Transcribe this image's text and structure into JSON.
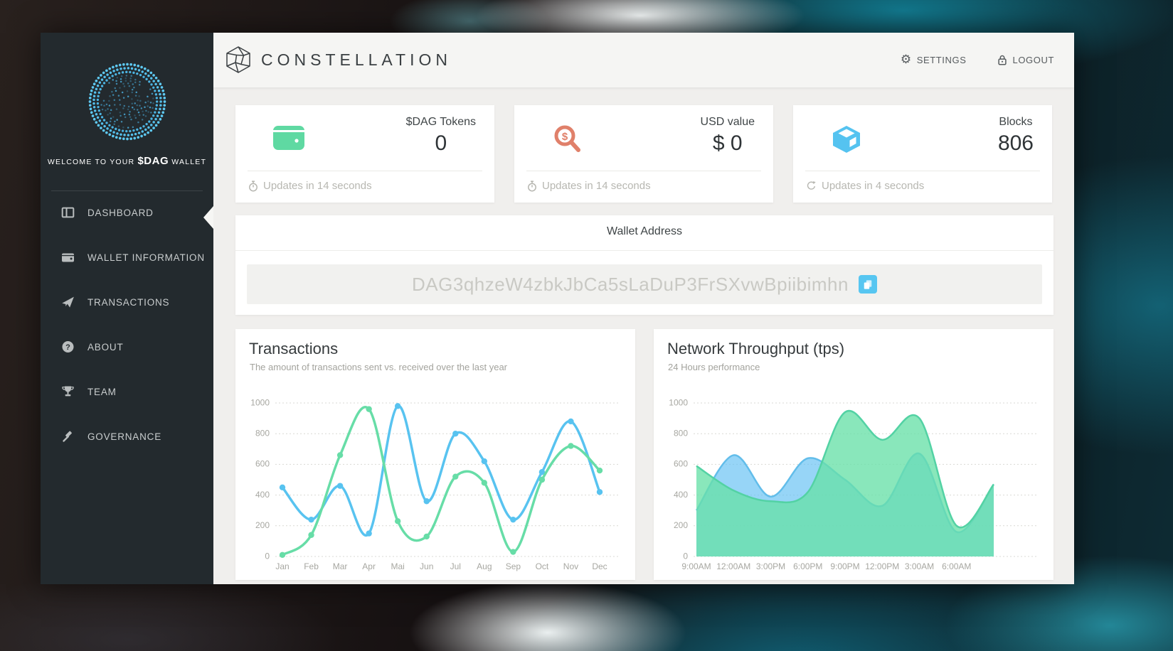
{
  "header": {
    "brand": "CONSTELLATION",
    "settings_label": "SETTINGS",
    "logout_label": "LOGOUT"
  },
  "sidebar": {
    "welcome_prefix": "WELCOME TO YOUR",
    "welcome_token": "$DAG",
    "welcome_suffix": "WALLET",
    "items": [
      {
        "label": "DASHBOARD",
        "icon": "dashboard-icon",
        "active": true
      },
      {
        "label": "WALLET INFORMATION",
        "icon": "wallet-icon",
        "active": false
      },
      {
        "label": "TRANSACTIONS",
        "icon": "send-icon",
        "active": false
      },
      {
        "label": "ABOUT",
        "icon": "question-icon",
        "active": false
      },
      {
        "label": "TEAM",
        "icon": "trophy-icon",
        "active": false
      },
      {
        "label": "GOVERNANCE",
        "icon": "gavel-icon",
        "active": false
      }
    ]
  },
  "stats": [
    {
      "title": "$DAG Tokens",
      "value": "0",
      "icon": "wallet-icon",
      "accent": "#5fd9a2",
      "footer_icon": "clock-icon",
      "footer": "Updates in 14 seconds"
    },
    {
      "title": "USD value",
      "value": "$ 0",
      "icon": "dollar-search-icon",
      "accent": "#e0806a",
      "footer_icon": "clock-icon",
      "footer": "Updates in 14 seconds"
    },
    {
      "title": "Blocks",
      "value": "806",
      "icon": "cube-icon",
      "accent": "#55c3f0",
      "footer_icon": "refresh-icon",
      "footer": "Updates in 4 seconds"
    }
  ],
  "wallet_address": {
    "title": "Wallet Address",
    "address": "DAG3qhzeW4zbkJbCa5sLaDuP3FrSXvwBpiibimhn",
    "copy_icon": "copy-icon",
    "copy_button_color": "#57c6f1"
  },
  "colors": {
    "accent_blue": "#58c3f0",
    "accent_green": "#67dda7",
    "accent_salmon": "#e0806a",
    "sidebar_bg": "#232a2e",
    "page_bg": "#f0efed",
    "grid": "#d9d9d4",
    "axis_text": "#a7a7a1"
  },
  "chart_data": [
    {
      "type": "line",
      "title": "Transactions",
      "subtitle": "The amount of transactions sent vs. received over the last year",
      "categories": [
        "Jan",
        "Feb",
        "Mar",
        "Apr",
        "Mai",
        "Jun",
        "Jul",
        "Aug",
        "Sep",
        "Oct",
        "Nov",
        "Dec"
      ],
      "series": [
        {
          "name": "sent",
          "color": "#58c3f0",
          "values": [
            450,
            240,
            460,
            150,
            980,
            360,
            800,
            620,
            240,
            550,
            880,
            420
          ]
        },
        {
          "name": "received",
          "color": "#67dda7",
          "values": [
            10,
            140,
            660,
            960,
            230,
            130,
            520,
            480,
            30,
            500,
            720,
            560
          ]
        }
      ],
      "ylim": [
        0,
        1000
      ],
      "yticks": [
        0,
        200,
        400,
        600,
        800,
        1000
      ],
      "grid": "dotted-horizontal",
      "legend": "none"
    },
    {
      "type": "area",
      "title": "Network Throughput (tps)",
      "subtitle": "24 Hours performance",
      "categories": [
        "9:00AM",
        "12:00AM",
        "3:00PM",
        "6:00PM",
        "9:00PM",
        "12:00PM",
        "3:00AM",
        "6:00AM",
        ""
      ],
      "series": [
        {
          "name": "throughput-blue",
          "color": "#62bdea",
          "fill": "rgba(96,190,242,0.65)",
          "values": [
            300,
            660,
            390,
            640,
            500,
            330,
            670,
            160,
            470
          ]
        },
        {
          "name": "throughput-green",
          "color": "#53d2a4",
          "fill": "rgba(104,224,168,0.78)",
          "values": [
            590,
            430,
            360,
            420,
            940,
            760,
            900,
            200,
            470
          ]
        }
      ],
      "ylim": [
        0,
        1000
      ],
      "yticks": [
        0,
        200,
        400,
        600,
        800,
        1000
      ],
      "grid": "dotted-horizontal",
      "legend": "none"
    }
  ]
}
